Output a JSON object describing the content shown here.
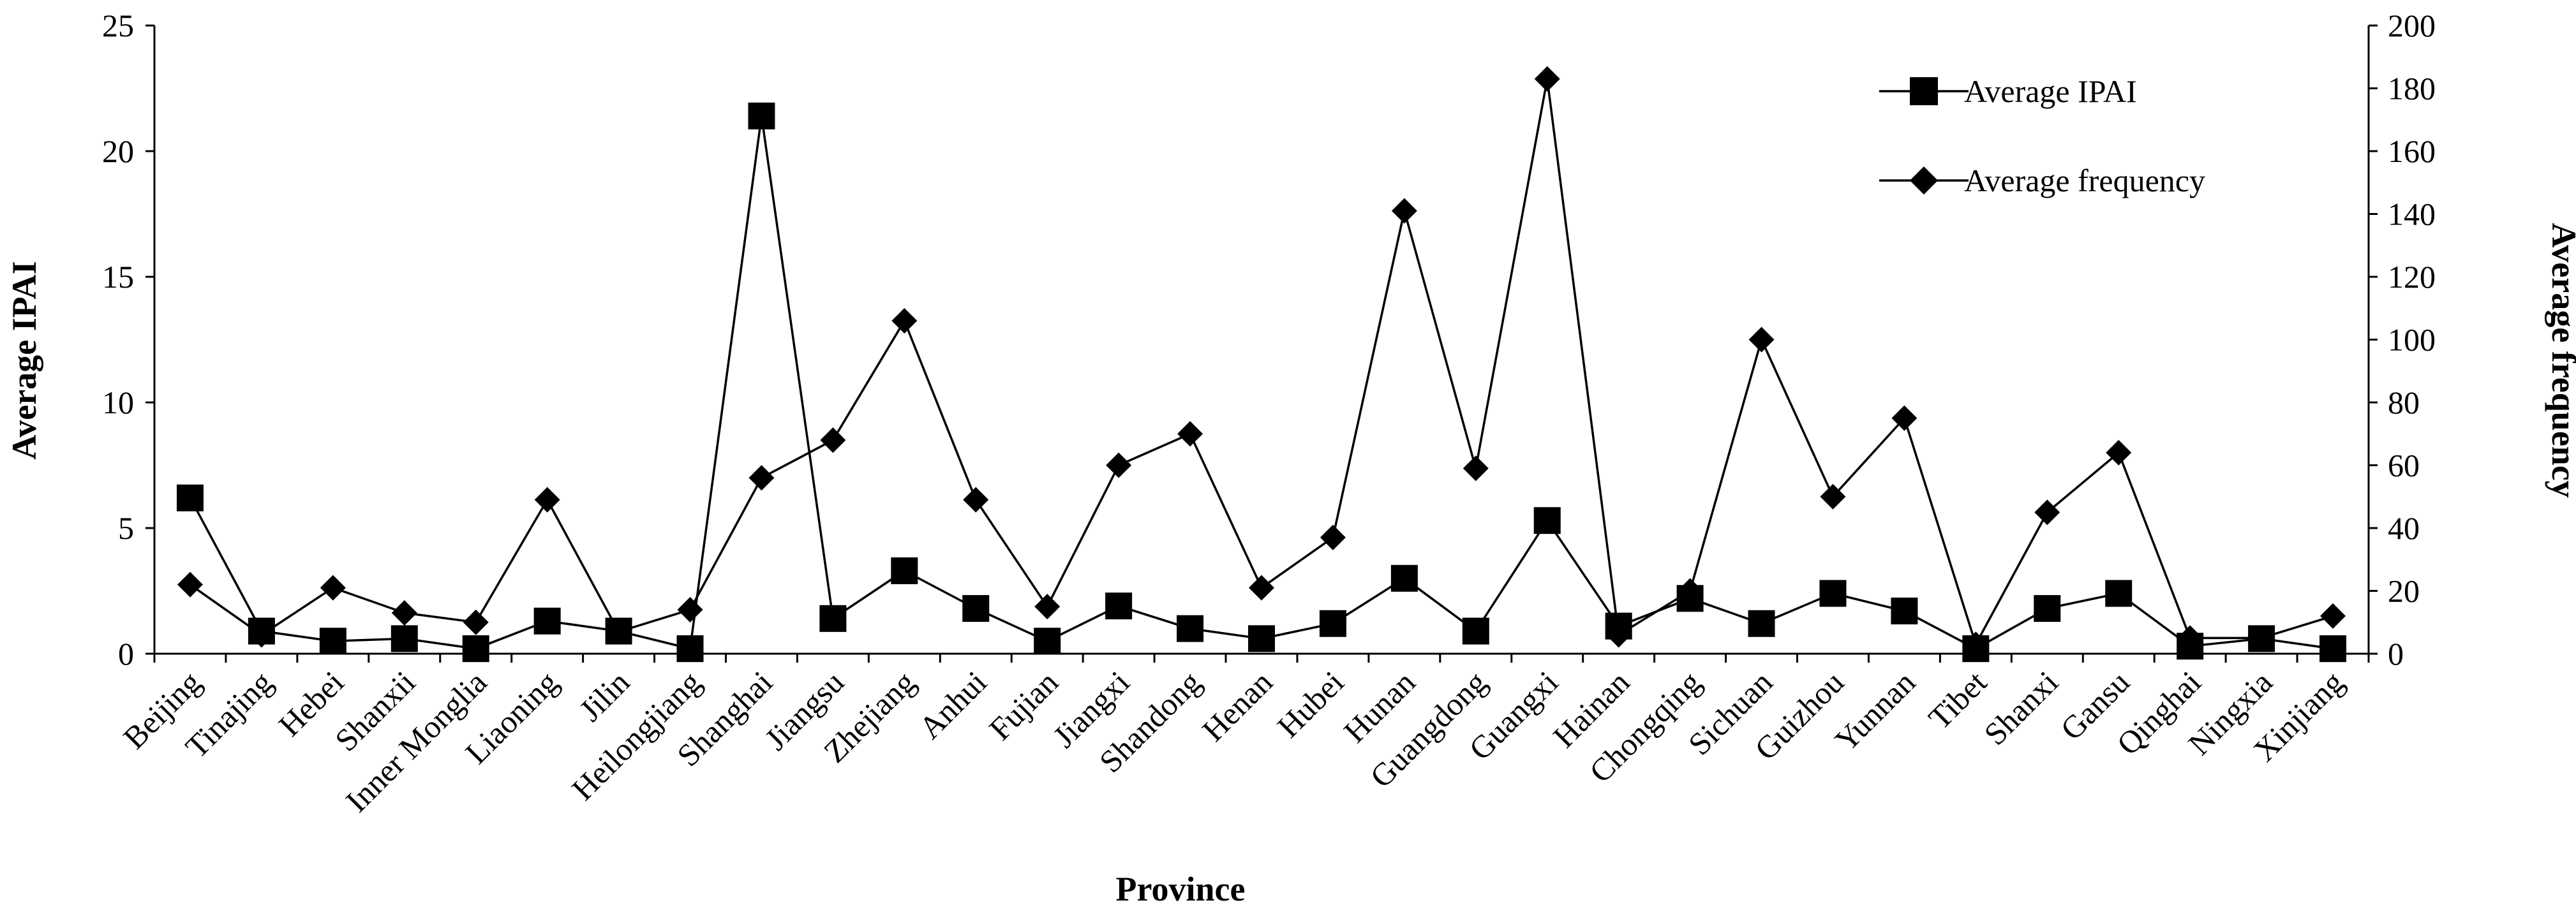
{
  "chart_data": {
    "type": "line",
    "xlabel": "Province",
    "ylabel_left": "Average IPAI",
    "ylabel_right": "Average frequency",
    "ylim_left": [
      0,
      25
    ],
    "yticks_left": [
      0,
      5,
      10,
      15,
      20,
      25
    ],
    "ylim_right": [
      0,
      200
    ],
    "yticks_right": [
      0,
      20,
      40,
      60,
      80,
      100,
      120,
      140,
      160,
      180,
      200
    ],
    "legend_position": "top-right",
    "categories": [
      "Beijing",
      "Tinajing",
      "Hebei",
      "Shanxii",
      "Inner Monglia",
      "Liaoning",
      "Jilin",
      "Heilongjiang",
      "Shanghai",
      "Jiangsu",
      "Zhejiang",
      "Anhui",
      "Fujian",
      "Jiangxi",
      "Shandong",
      "Henan",
      "Hubei",
      "Hunan",
      "Guangdong",
      "Guangxi",
      "Hainan",
      "Chongqing",
      "Sichuan",
      "Guizhou",
      "Yunnan",
      "Tibet",
      "Shanxi",
      "Gansu",
      "Qinghai",
      "Ningxia",
      "Xinjiang"
    ],
    "series": [
      {
        "name": "Average IPAI",
        "axis": "left",
        "marker": "square",
        "values": [
          6.2,
          0.9,
          0.5,
          0.6,
          0.2,
          1.3,
          0.9,
          0.2,
          21.4,
          1.4,
          3.3,
          1.8,
          0.5,
          1.9,
          1.0,
          0.6,
          1.2,
          3.0,
          0.9,
          5.3,
          1.1,
          2.2,
          1.2,
          2.4,
          1.7,
          0.2,
          1.8,
          2.4,
          0.3,
          0.6,
          0.2
        ]
      },
      {
        "name": "Average frequency",
        "axis": "right",
        "marker": "diamond",
        "values": [
          22,
          6,
          21,
          13,
          10,
          49,
          7,
          14,
          56,
          68,
          106,
          49,
          15,
          60,
          70,
          21,
          37,
          141,
          59,
          183,
          6,
          20,
          100,
          50,
          75,
          3,
          45,
          64,
          5,
          5,
          12
        ]
      }
    ]
  }
}
